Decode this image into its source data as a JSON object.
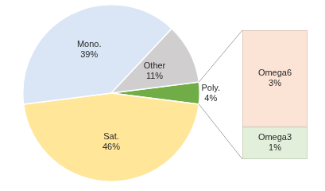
{
  "chart_data": [
    {
      "type": "pie",
      "categories": [
        "Poly.",
        "Sat.",
        "Mono.",
        "Other"
      ],
      "values": [
        4,
        46,
        39,
        11
      ],
      "value_labels": [
        "4%",
        "46%",
        "39%",
        "11%"
      ],
      "colors": [
        "#70ad47",
        "#ffe699",
        "#dae6f5",
        "#d0cece"
      ],
      "data_labels": true
    },
    {
      "type": "bar",
      "stacked": true,
      "categories": [
        null
      ],
      "ylim": [
        0,
        4
      ],
      "tick_labels": false,
      "data_labels": true,
      "series": [
        {
          "name": "Omega6",
          "color": "#fbe3d6",
          "values": [
            3
          ],
          "value_labels": [
            "3%"
          ]
        },
        {
          "name": "Omega3",
          "color": "#e2efda",
          "values": [
            1
          ],
          "value_labels": [
            "1%"
          ]
        }
      ]
    }
  ]
}
